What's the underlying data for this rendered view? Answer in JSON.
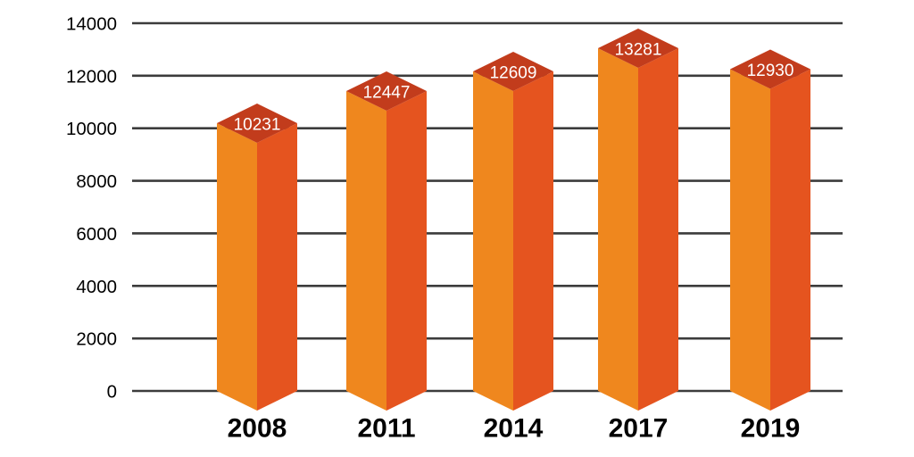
{
  "chart_data": {
    "type": "bar",
    "variant": "3d-column-infographic",
    "title": "",
    "xlabel": "",
    "ylabel": "",
    "categories": [
      "2008",
      "2011",
      "2014",
      "2017",
      "2019"
    ],
    "values": [
      10231,
      12447,
      12609,
      13281,
      12930
    ],
    "value_labels": [
      "10231",
      "12447",
      "12609",
      "13281",
      "12930"
    ],
    "ylim": [
      0,
      14000
    ],
    "ytick_step": 2000,
    "yticks": [
      0,
      2000,
      4000,
      6000,
      8000,
      10000,
      12000,
      14000
    ],
    "grid": true,
    "legend": false,
    "colors": {
      "background": "#ffffff",
      "gridline": "#3c3c3c",
      "axis_text": "#000000",
      "category_text": "#000000",
      "bar_left_face": "#EF871E",
      "bar_right_face": "#E5541F",
      "bar_top_face": "#C23C1C",
      "value_text": "#ffffff"
    }
  }
}
